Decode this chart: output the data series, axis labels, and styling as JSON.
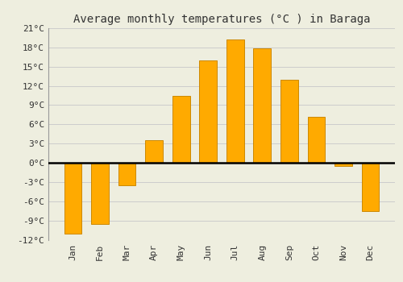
{
  "title": "Average monthly temperatures (°C ) in Baraga",
  "months": [
    "Jan",
    "Feb",
    "Mar",
    "Apr",
    "May",
    "Jun",
    "Jul",
    "Aug",
    "Sep",
    "Oct",
    "Nov",
    "Dec"
  ],
  "values": [
    -11,
    -9.5,
    -3.5,
    3.5,
    10.5,
    16,
    19.2,
    17.8,
    13,
    7.2,
    -0.5,
    -7.5
  ],
  "bar_color": "#FFAA00",
  "bar_edge_color": "#CC8800",
  "background_color": "#eeeedf",
  "ylim": [
    -12,
    21
  ],
  "yticks": [
    -12,
    -9,
    -6,
    -3,
    0,
    3,
    6,
    9,
    12,
    15,
    18,
    21
  ],
  "ytick_labels": [
    "-12°C",
    "-9°C",
    "-6°C",
    "-3°C",
    "0°C",
    "3°C",
    "6°C",
    "9°C",
    "12°C",
    "15°C",
    "18°C",
    "21°C"
  ],
  "title_fontsize": 10,
  "tick_fontsize": 8,
  "grid_color": "#cccccc",
  "bar_width": 0.65
}
